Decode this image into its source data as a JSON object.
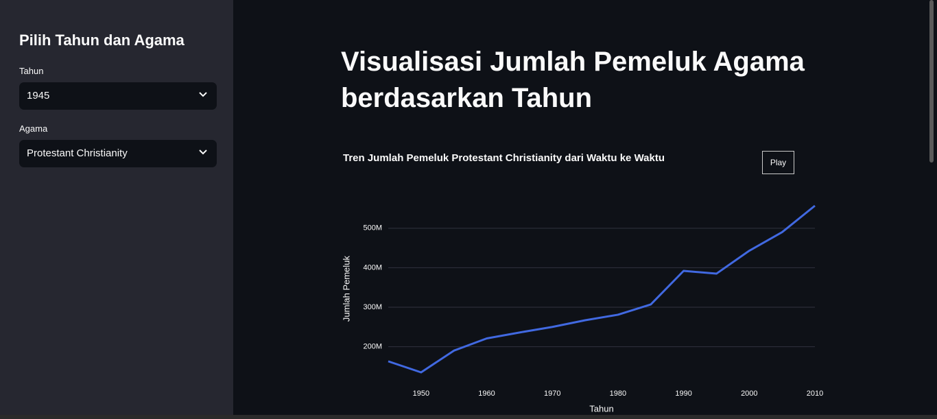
{
  "sidebar": {
    "title": "Pilih Tahun dan Agama",
    "fields": [
      {
        "label": "Tahun",
        "value": "1945"
      },
      {
        "label": "Agama",
        "value": "Protestant Christianity"
      }
    ]
  },
  "header": {
    "title": "Visualisasi Jumlah Pemeluk Agama berdasarkan Tahun"
  },
  "controls": {
    "play": "Play"
  },
  "chart_data": {
    "type": "line",
    "title": "Tren Jumlah Pemeluk Protestant Christianity dari Waktu ke Waktu",
    "x_label": "Tahun",
    "y_label": "Jumlah Pemeluk",
    "x": [
      1945,
      1950,
      1955,
      1960,
      1965,
      1970,
      1975,
      1980,
      1985,
      1990,
      1995,
      2000,
      2005,
      2010
    ],
    "values": [
      163000000,
      135000000,
      190000000,
      221000000,
      236000000,
      250000000,
      267000000,
      281000000,
      307000000,
      392000000,
      385000000,
      443000000,
      490000000,
      557000000
    ],
    "color": "#4169e1",
    "xlim": [
      1945,
      2010
    ],
    "xticks": [
      1950,
      1960,
      1970,
      1980,
      1990,
      2000,
      2010
    ],
    "ylim": [
      135000000,
      557000000
    ],
    "yticks": [
      {
        "value": 200000000,
        "label": "200M"
      },
      {
        "value": 300000000,
        "label": "300M"
      },
      {
        "value": 400000000,
        "label": "400M"
      },
      {
        "value": 500000000,
        "label": "500M"
      }
    ],
    "grid": true
  }
}
